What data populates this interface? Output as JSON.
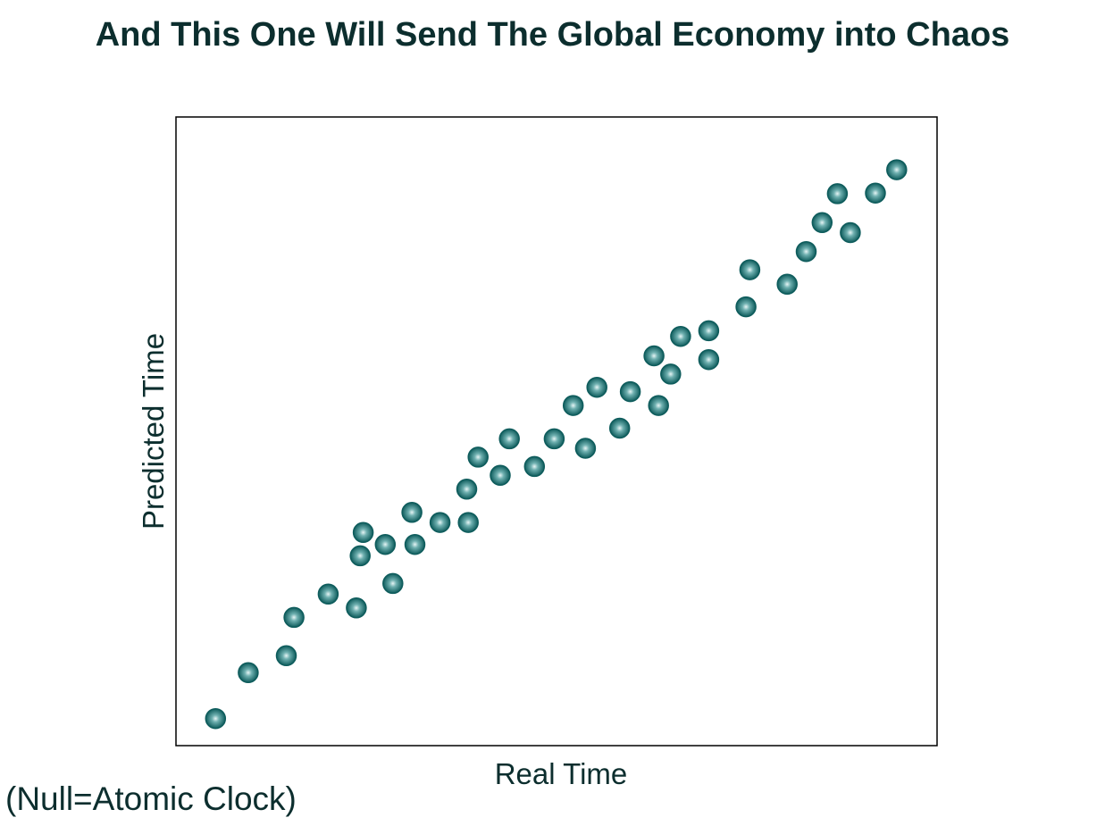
{
  "chart_data": {
    "type": "scatter",
    "title": "And This One Will Send The Global Economy into Chaos",
    "xlabel": "Real Time",
    "ylabel": "Predicted Time",
    "annotation": "(Null=Atomic Clock)",
    "xlim": [
      0,
      100
    ],
    "ylim": [
      0,
      100
    ],
    "grid": false,
    "legend": "none",
    "marker_color": "#0e5c5c",
    "marker_highlight": "#e6f5f5",
    "axes_color": "#000000",
    "points": [
      [
        5.2,
        4.3
      ],
      [
        9.5,
        11.6
      ],
      [
        14.5,
        14.3
      ],
      [
        15.5,
        20.4
      ],
      [
        20,
        24.1
      ],
      [
        23.7,
        21.9
      ],
      [
        24.2,
        30.2
      ],
      [
        24.6,
        33.9
      ],
      [
        27.5,
        32
      ],
      [
        28.5,
        25.8
      ],
      [
        31,
        37.1
      ],
      [
        31.4,
        32
      ],
      [
        34.7,
        35.5
      ],
      [
        38.4,
        35.5
      ],
      [
        38.2,
        40.8
      ],
      [
        39.7,
        45.9
      ],
      [
        42.6,
        43
      ],
      [
        43.8,
        48.8
      ],
      [
        47.1,
        44.4
      ],
      [
        49.7,
        48.8
      ],
      [
        52.2,
        54.1
      ],
      [
        53.8,
        47.3
      ],
      [
        55.3,
        57
      ],
      [
        58.3,
        50.5
      ],
      [
        59.7,
        56.3
      ],
      [
        63.4,
        54.1
      ],
      [
        62.8,
        62
      ],
      [
        65,
        59.1
      ],
      [
        66.3,
        65.1
      ],
      [
        70,
        66
      ],
      [
        70,
        61.4
      ],
      [
        74.9,
        69.8
      ],
      [
        75.4,
        75.7
      ],
      [
        80.3,
        73.4
      ],
      [
        82.8,
        78.6
      ],
      [
        84.9,
        83.2
      ],
      [
        86.9,
        87.8
      ],
      [
        88.6,
        81.6
      ],
      [
        91.9,
        87.9
      ],
      [
        94.7,
        91.6
      ]
    ]
  }
}
